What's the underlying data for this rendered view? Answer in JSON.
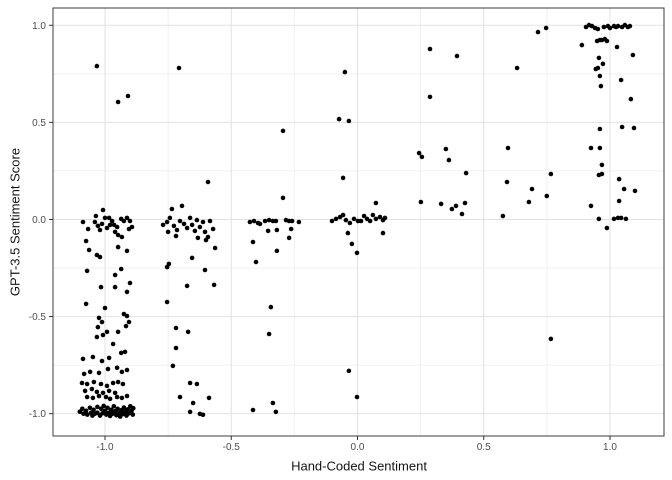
{
  "chart_data": {
    "type": "scatter",
    "title": "",
    "xlabel": "Hand-Coded Sentiment",
    "ylabel": "GPT-3.5 Sentiment Score",
    "xlim": [
      -1.206,
      1.214
    ],
    "ylim": [
      -1.115,
      1.089
    ],
    "x_major_ticks": [
      -1.0,
      -0.5,
      0.0,
      0.5,
      1.0
    ],
    "x_tick_labels": [
      "-1.0",
      "-0.5",
      "0.0",
      "0.5",
      "1.0"
    ],
    "y_major_ticks": [
      -1.0,
      -0.5,
      0.0,
      0.5,
      1.0
    ],
    "y_tick_labels": [
      "-1.0",
      "-0.5",
      "0.0",
      "0.5",
      "1.0"
    ],
    "x_minor_ticks": [
      -0.75,
      -0.25,
      0.25,
      0.75
    ],
    "y_minor_ticks": [
      -0.75,
      -0.25,
      0.25,
      0.75
    ],
    "grid": true,
    "legend": false,
    "point_color": "#000000",
    "point_radius": 2.3,
    "colors": {
      "background": "#ffffff",
      "grid_major": "#e2e2e2",
      "grid_minor": "#f0f0f0",
      "panel_border": "#3c3c3c",
      "tick": "#333333",
      "tick_label": "#4d4d4d",
      "axis_title": "#141414"
    },
    "points": [
      [
        -1.032,
        0.79
      ],
      [
        -0.948,
        0.605
      ],
      [
        -0.909,
        0.636
      ],
      [
        -1.008,
        0.049
      ],
      [
        -0.984,
        0.008
      ],
      [
        -0.972,
        -0.008
      ],
      [
        -1.087,
        -0.013
      ],
      [
        -1.067,
        -0.049
      ],
      [
        -1.04,
        -0.013
      ],
      [
        -1.028,
        -0.033
      ],
      [
        -1.02,
        -0.054
      ],
      [
        -1.012,
        -0.023
      ],
      [
        -1.0,
        0.008
      ],
      [
        -0.992,
        -0.044
      ],
      [
        -0.98,
        -0.028
      ],
      [
        -0.964,
        -0.028
      ],
      [
        -0.952,
        -0.039
      ],
      [
        -0.96,
        -0.064
      ],
      [
        -0.936,
        0.003
      ],
      [
        -0.925,
        -0.008
      ],
      [
        -0.913,
        0.008
      ],
      [
        -0.901,
        -0.008
      ],
      [
        -0.893,
        -0.039
      ],
      [
        -0.905,
        -0.049
      ],
      [
        -0.948,
        -0.08
      ],
      [
        -0.933,
        -0.09
      ],
      [
        -1.075,
        -0.111
      ],
      [
        -1.063,
        -0.157
      ],
      [
        -0.948,
        -0.142
      ],
      [
        -0.913,
        -0.162
      ],
      [
        -1.036,
        0.018
      ],
      [
        -1.032,
        -0.183
      ],
      [
        -1.02,
        -0.193
      ],
      [
        -1.071,
        -0.265
      ],
      [
        -0.936,
        -0.255
      ],
      [
        -0.96,
        -0.286
      ],
      [
        -1.016,
        -0.348
      ],
      [
        -0.96,
        -0.348
      ],
      [
        -0.901,
        -0.327
      ],
      [
        -0.913,
        -0.373
      ],
      [
        -1.075,
        -0.435
      ],
      [
        -1.0,
        -0.456
      ],
      [
        -0.925,
        -0.487
      ],
      [
        -0.913,
        -0.497
      ],
      [
        -0.905,
        -0.528
      ],
      [
        -0.917,
        -0.549
      ],
      [
        -1.024,
        -0.507
      ],
      [
        -1.012,
        -0.528
      ],
      [
        -1.028,
        -0.554
      ],
      [
        -1.008,
        -0.595
      ],
      [
        -0.992,
        -0.579
      ],
      [
        -1.032,
        -0.605
      ],
      [
        -0.948,
        -0.579
      ],
      [
        -0.968,
        -0.641
      ],
      [
        -0.921,
        -0.682
      ],
      [
        -1.087,
        -0.718
      ],
      [
        -1.048,
        -0.708
      ],
      [
        -1.012,
        -0.729
      ],
      [
        -0.984,
        -0.713
      ],
      [
        -0.936,
        -0.687
      ],
      [
        -1.083,
        -0.795
      ],
      [
        -1.059,
        -0.785
      ],
      [
        -1.024,
        -0.79
      ],
      [
        -0.988,
        -0.77
      ],
      [
        -0.952,
        -0.764
      ],
      [
        -0.933,
        -0.785
      ],
      [
        -0.913,
        -0.775
      ],
      [
        -1.091,
        -0.842
      ],
      [
        -1.071,
        -0.847
      ],
      [
        -1.044,
        -0.837
      ],
      [
        -1.016,
        -0.847
      ],
      [
        -0.992,
        -0.857
      ],
      [
        -0.968,
        -0.842
      ],
      [
        -0.948,
        -0.837
      ],
      [
        -0.929,
        -0.847
      ],
      [
        -1.079,
        -0.883
      ],
      [
        -1.052,
        -0.873
      ],
      [
        -1.032,
        -0.888
      ],
      [
        -1.008,
        -0.893
      ],
      [
        -0.984,
        -0.883
      ],
      [
        -0.96,
        -0.893
      ],
      [
        -1.071,
        -0.914
      ],
      [
        -1.048,
        -0.919
      ],
      [
        -1.024,
        -0.909
      ],
      [
        -0.996,
        -0.914
      ],
      [
        -0.98,
        -0.924
      ],
      [
        -0.952,
        -0.914
      ],
      [
        -0.933,
        -0.919
      ],
      [
        -0.913,
        -0.909
      ],
      [
        -1.1,
        -0.99
      ],
      [
        -1.09,
        -0.975
      ],
      [
        -1.085,
        -1.0
      ],
      [
        -1.075,
        -0.985
      ],
      [
        -1.07,
        -1.005
      ],
      [
        -1.06,
        -0.97
      ],
      [
        -1.055,
        -0.995
      ],
      [
        -1.05,
        -1.01
      ],
      [
        -1.045,
        -0.98
      ],
      [
        -1.04,
        -1.0
      ],
      [
        -1.03,
        -0.965
      ],
      [
        -1.03,
        -0.995
      ],
      [
        -1.02,
        -1.01
      ],
      [
        -1.015,
        -0.975
      ],
      [
        -1.01,
        -0.998
      ],
      [
        -1.005,
        -0.96
      ],
      [
        -1.0,
        -0.985
      ],
      [
        -0.995,
        -1.005
      ],
      [
        -0.99,
        -0.97
      ],
      [
        -0.985,
        -0.995
      ],
      [
        -0.98,
        -1.012
      ],
      [
        -0.975,
        -0.98
      ],
      [
        -0.97,
        -1.0
      ],
      [
        -0.965,
        -0.962
      ],
      [
        -0.96,
        -0.988
      ],
      [
        -0.955,
        -1.008
      ],
      [
        -0.95,
        -0.975
      ],
      [
        -0.945,
        -0.997
      ],
      [
        -0.94,
        -1.015
      ],
      [
        -0.935,
        -0.982
      ],
      [
        -0.93,
        -1.002
      ],
      [
        -0.925,
        -0.968
      ],
      [
        -0.92,
        -0.99
      ],
      [
        -0.915,
        -1.01
      ],
      [
        -0.91,
        -0.978
      ],
      [
        -0.905,
        -0.998
      ],
      [
        -0.9,
        -0.962
      ],
      [
        -0.895,
        -0.985
      ],
      [
        -0.89,
        -1.005
      ],
      [
        -0.888,
        -0.972
      ],
      [
        -0.77,
        -0.028
      ],
      [
        -0.754,
        -0.013
      ],
      [
        -0.743,
        0.008
      ],
      [
        -0.735,
        0.054
      ],
      [
        -0.727,
        -0.033
      ],
      [
        -0.715,
        -0.054
      ],
      [
        -0.703,
        -0.008
      ],
      [
        -0.695,
        0.07
      ],
      [
        -0.687,
        -0.023
      ],
      [
        -0.675,
        -0.044
      ],
      [
        -0.663,
        0.008
      ],
      [
        -0.655,
        -0.028
      ],
      [
        -0.644,
        -0.059
      ],
      [
        -0.636,
        -0.003
      ],
      [
        -0.624,
        -0.039
      ],
      [
        -0.612,
        -0.013
      ],
      [
        -0.604,
        -0.064
      ],
      [
        -0.592,
        -0.09
      ],
      [
        -0.584,
        -0.008
      ],
      [
        -0.572,
        -0.049
      ],
      [
        -0.632,
        -0.095
      ],
      [
        -0.6,
        -0.106
      ],
      [
        -0.75,
        -0.064
      ],
      [
        -0.719,
        -0.085
      ],
      [
        -0.707,
        0.78
      ],
      [
        -0.592,
        0.193
      ],
      [
        -0.564,
        -0.147
      ],
      [
        -0.568,
        -0.337
      ],
      [
        -0.754,
        -0.245
      ],
      [
        -0.747,
        -0.229
      ],
      [
        -0.604,
        -0.26
      ],
      [
        -0.655,
        -0.198
      ],
      [
        -0.675,
        -0.342
      ],
      [
        -0.754,
        -0.425
      ],
      [
        -0.719,
        -0.559
      ],
      [
        -0.671,
        -0.579
      ],
      [
        -0.719,
        -0.662
      ],
      [
        -0.731,
        -0.754
      ],
      [
        -0.663,
        -0.842
      ],
      [
        -0.703,
        -0.914
      ],
      [
        -0.636,
        -0.847
      ],
      [
        -0.651,
        -0.945
      ],
      [
        -0.588,
        -0.919
      ],
      [
        -0.612,
        -1.006
      ],
      [
        -0.663,
        -0.991
      ],
      [
        -0.624,
        -1.001
      ],
      [
        -0.295,
        0.456
      ],
      [
        -0.295,
        0.111
      ],
      [
        -0.426,
        -0.013
      ],
      [
        -0.41,
        -0.008
      ],
      [
        -0.394,
        -0.018
      ],
      [
        -0.386,
        -0.023
      ],
      [
        -0.366,
        -0.008
      ],
      [
        -0.35,
        -0.003
      ],
      [
        -0.335,
        -0.008
      ],
      [
        -0.323,
        -0.008
      ],
      [
        -0.283,
        -0.003
      ],
      [
        -0.271,
        -0.008
      ],
      [
        -0.259,
        -0.008
      ],
      [
        -0.232,
        -0.013
      ],
      [
        -0.354,
        -0.059
      ],
      [
        -0.319,
        -0.054
      ],
      [
        -0.263,
        -0.049
      ],
      [
        -0.271,
        -0.095
      ],
      [
        -0.319,
        -0.162
      ],
      [
        -0.414,
        -0.116
      ],
      [
        -0.402,
        -0.219
      ],
      [
        -0.343,
        -0.451
      ],
      [
        -0.35,
        -0.59
      ],
      [
        -0.414,
        -0.981
      ],
      [
        -0.335,
        -0.945
      ],
      [
        -0.323,
        -0.991
      ],
      [
        -0.05,
        0.759
      ],
      [
        -0.073,
        0.517
      ],
      [
        -0.034,
        0.507
      ],
      [
        -0.057,
        0.214
      ],
      [
        0.073,
        0.085
      ],
      [
        -0.101,
        -0.008
      ],
      [
        -0.085,
        0.003
      ],
      [
        -0.069,
        0.013
      ],
      [
        -0.057,
        0.023
      ],
      [
        -0.046,
        -0.003
      ],
      [
        -0.03,
        -0.018
      ],
      [
        -0.014,
        0.003
      ],
      [
        0.002,
        -0.008
      ],
      [
        0.014,
        -0.008
      ],
      [
        0.026,
        0.018
      ],
      [
        0.038,
        0.003
      ],
      [
        0.05,
        -0.008
      ],
      [
        0.061,
        0.023
      ],
      [
        0.073,
        0.003
      ],
      [
        0.089,
        0.013
      ],
      [
        0.101,
        -0.003
      ],
      [
        0.109,
        0.008
      ],
      [
        -0.038,
        -0.07
      ],
      [
        0.101,
        -0.07
      ],
      [
        -0.022,
        -0.126
      ],
      [
        -0.002,
        -0.172
      ],
      [
        -0.034,
        -0.78
      ],
      [
        -0.002,
        -0.914
      ],
      [
        0.287,
        0.878
      ],
      [
        0.394,
        0.842
      ],
      [
        0.287,
        0.631
      ],
      [
        0.244,
        0.342
      ],
      [
        0.255,
        0.322
      ],
      [
        0.35,
        0.363
      ],
      [
        0.362,
        0.306
      ],
      [
        0.43,
        0.239
      ],
      [
        0.251,
        0.09
      ],
      [
        0.331,
        0.08
      ],
      [
        0.374,
        0.054
      ],
      [
        0.39,
        0.07
      ],
      [
        0.426,
        0.085
      ],
      [
        0.414,
        0.028
      ],
      [
        0.632,
        0.78
      ],
      [
        0.596,
        0.368
      ],
      [
        0.592,
        0.193
      ],
      [
        0.576,
        0.018
      ],
      [
        0.715,
        0.965
      ],
      [
        0.747,
        0.986
      ],
      [
        0.766,
        0.234
      ],
      [
        0.691,
        0.157
      ],
      [
        0.75,
        0.121
      ],
      [
        0.679,
        0.09
      ],
      [
        0.766,
        -0.615
      ],
      [
        0.905,
        0.991
      ],
      [
        0.917,
        1.001
      ],
      [
        0.929,
        0.996
      ],
      [
        0.941,
        0.986
      ],
      [
        0.952,
        0.981
      ],
      [
        0.976,
        0.991
      ],
      [
        0.992,
        0.996
      ],
      [
        1.0,
        0.986
      ],
      [
        1.016,
        0.996
      ],
      [
        1.024,
        0.991
      ],
      [
        1.032,
        0.996
      ],
      [
        1.048,
        0.991
      ],
      [
        1.059,
        1.001
      ],
      [
        1.071,
        0.991
      ],
      [
        1.079,
        0.996
      ],
      [
        0.889,
        0.898
      ],
      [
        0.949,
        0.919
      ],
      [
        0.96,
        0.924
      ],
      [
        0.968,
        0.924
      ],
      [
        0.98,
        0.929
      ],
      [
        0.988,
        0.919
      ],
      [
        1.028,
        0.888
      ],
      [
        1.091,
        0.847
      ],
      [
        0.956,
        0.832
      ],
      [
        0.972,
        0.801
      ],
      [
        0.952,
        0.78
      ],
      [
        0.944,
        0.775
      ],
      [
        0.96,
        0.739
      ],
      [
        0.964,
        0.687
      ],
      [
        1.044,
        0.718
      ],
      [
        1.083,
        0.62
      ],
      [
        1.048,
        0.476
      ],
      [
        1.095,
        0.471
      ],
      [
        0.96,
        0.466
      ],
      [
        0.925,
        0.368
      ],
      [
        0.96,
        0.368
      ],
      [
        0.968,
        0.281
      ],
      [
        0.956,
        0.229
      ],
      [
        0.968,
        0.234
      ],
      [
        1.036,
        0.208
      ],
      [
        1.056,
        0.157
      ],
      [
        1.099,
        0.147
      ],
      [
        1.036,
        0.095
      ],
      [
        0.925,
        0.07
      ],
      [
        0.956,
        0.003
      ],
      [
        0.988,
        -0.044
      ],
      [
        1.016,
        0.003
      ],
      [
        1.032,
        0.008
      ],
      [
        1.044,
        0.008
      ],
      [
        1.063,
        0.003
      ]
    ]
  }
}
